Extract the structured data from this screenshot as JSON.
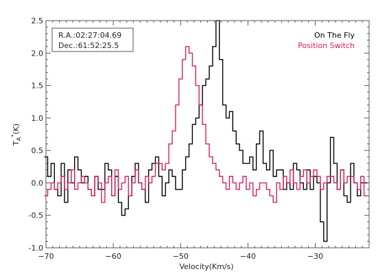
{
  "chart_data": {
    "type": "line",
    "xlabel": "Velocity(Km/s)",
    "ylabel_main": "T",
    "ylabel_sub": "A",
    "ylabel_sup": "*",
    "ylabel_unit": "(K)",
    "xlim": [
      -70,
      -22
    ],
    "ylim": [
      -1.0,
      2.5
    ],
    "xticks": [
      -70,
      -60,
      -50,
      -40,
      -30
    ],
    "yticks": [
      -1.0,
      -0.5,
      0.0,
      0.5,
      1.0,
      1.5,
      2.0,
      2.5
    ],
    "xtick_labels": [
      "−70",
      "−60",
      "−50",
      "−40",
      "−30"
    ],
    "ytick_labels": [
      "-1.0",
      "-0.5",
      "0.0",
      "0.5",
      "1.0",
      "1.5",
      "2.0",
      "2.5"
    ],
    "coordinates": {
      "ra": "R.A.:02:27:04.69",
      "dec": "Dec.:61:52:25.5"
    },
    "x": [
      -70.0,
      -69.5,
      -69.0,
      -68.5,
      -68.0,
      -67.5,
      -67.0,
      -66.5,
      -66.0,
      -65.5,
      -65.0,
      -64.5,
      -64.0,
      -63.5,
      -63.0,
      -62.5,
      -62.0,
      -61.5,
      -61.0,
      -60.5,
      -60.0,
      -59.5,
      -59.0,
      -58.5,
      -58.0,
      -57.5,
      -57.0,
      -56.5,
      -56.0,
      -55.5,
      -55.0,
      -54.5,
      -54.0,
      -53.5,
      -53.0,
      -52.5,
      -52.0,
      -51.5,
      -51.0,
      -50.5,
      -50.0,
      -49.5,
      -49.0,
      -48.5,
      -48.0,
      -47.5,
      -47.0,
      -46.5,
      -46.0,
      -45.5,
      -45.0,
      -44.5,
      -44.0,
      -43.5,
      -43.0,
      -42.5,
      -42.0,
      -41.5,
      -41.0,
      -40.5,
      -40.0,
      -39.5,
      -39.0,
      -38.5,
      -38.0,
      -37.5,
      -37.0,
      -36.5,
      -36.0,
      -35.5,
      -35.0,
      -34.5,
      -34.0,
      -33.5,
      -33.0,
      -32.5,
      -32.0,
      -31.5,
      -31.0,
      -30.5,
      -30.0,
      -29.5,
      -29.0,
      -28.5,
      -28.0,
      -27.5,
      -27.0,
      -26.5,
      -26.0,
      -25.5,
      -25.0,
      -24.5,
      -24.0,
      -23.5,
      -23.0,
      -22.5
    ],
    "series": [
      {
        "name": "On The Fly",
        "color": "#000000",
        "values": [
          0.4,
          0.1,
          0.3,
          -0.1,
          -0.2,
          0.3,
          -0.3,
          0.2,
          0.0,
          0.4,
          0.2,
          0.0,
          0.1,
          -0.1,
          -0.2,
          0.1,
          -0.1,
          -0.1,
          0.3,
          0.2,
          -0.2,
          0.1,
          -0.3,
          -0.5,
          -0.4,
          -0.2,
          0.1,
          0.3,
          0.0,
          -0.1,
          -0.3,
          0.2,
          0.3,
          0.4,
          0.1,
          -0.2,
          0.0,
          0.2,
          0.1,
          -0.1,
          -0.1,
          0.2,
          0.4,
          0.6,
          0.9,
          1.0,
          1.2,
          1.5,
          1.6,
          1.8,
          2.1,
          2.5,
          1.9,
          1.2,
          1.0,
          1.1,
          0.8,
          0.6,
          0.5,
          0.3,
          0.3,
          0.4,
          0.2,
          0.6,
          0.8,
          0.3,
          0.2,
          0.5,
          0.1,
          0.2,
          0.2,
          -0.1,
          0.0,
          -0.1,
          0.3,
          0.2,
          0.0,
          -0.1,
          0.2,
          -0.1,
          0.1,
          0.0,
          -0.6,
          -0.9,
          0.0,
          0.7,
          0.3,
          -0.1,
          0.2,
          -0.2,
          -0.3,
          0.3,
          0.0,
          -0.2,
          0.0,
          0.0
        ]
      },
      {
        "name": "Position Switch",
        "color": "#d81e5b",
        "values": [
          -0.2,
          -0.1,
          0.0,
          -0.1,
          0.0,
          0.1,
          -0.1,
          0.0,
          0.2,
          -0.1,
          0.0,
          0.1,
          0.0,
          -0.1,
          -0.2,
          0.1,
          0.0,
          -0.3,
          0.0,
          0.1,
          -0.2,
          0.2,
          -0.1,
          0.0,
          0.1,
          -0.2,
          0.0,
          0.2,
          0.0,
          -0.1,
          0.1,
          0.0,
          0.1,
          0.3,
          0.3,
          0.2,
          0.3,
          0.6,
          0.8,
          1.2,
          1.6,
          1.9,
          2.1,
          2.0,
          1.8,
          1.5,
          1.2,
          0.9,
          0.6,
          0.4,
          0.3,
          0.2,
          0.1,
          0.0,
          -0.1,
          0.1,
          0.0,
          -0.1,
          0.0,
          0.1,
          -0.1,
          0.0,
          -0.2,
          -0.1,
          0.0,
          0.0,
          -0.1,
          -0.2,
          -0.3,
          0.0,
          -0.1,
          0.1,
          0.0,
          0.2,
          0.0,
          -0.1,
          0.1,
          0.2,
          0.0,
          0.1,
          0.2,
          0.1,
          -0.1,
          0.0,
          0.1,
          0.1,
          0.0,
          -0.1,
          0.2,
          0.0,
          0.1,
          0.1,
          0.0,
          -0.1,
          0.1,
          -0.2
        ]
      }
    ]
  }
}
